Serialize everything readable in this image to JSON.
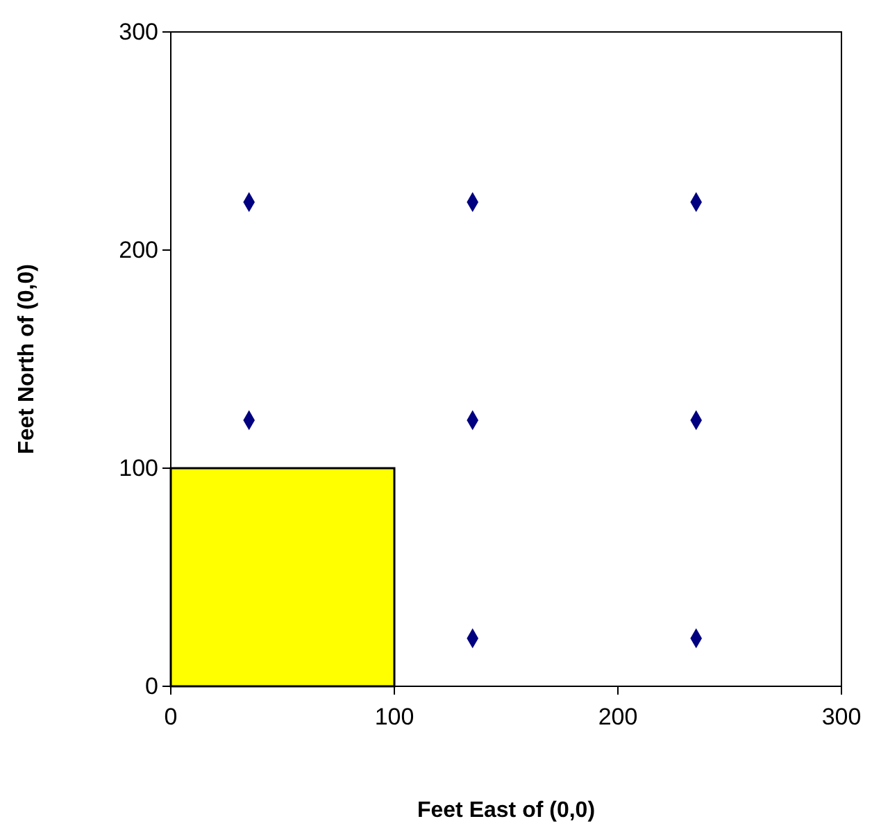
{
  "chart_data": {
    "type": "scatter",
    "xlabel": "Feet East of (0,0)",
    "ylabel": "Feet North of (0,0)",
    "xlim": [
      0,
      300
    ],
    "ylim": [
      0,
      300
    ],
    "xticks": [
      0,
      100,
      200,
      300
    ],
    "yticks": [
      0,
      100,
      200,
      300
    ],
    "grid": false,
    "series": [
      {
        "type": "area",
        "color": "#ffff00",
        "x": [
          0,
          100
        ],
        "values": [
          100,
          100
        ]
      },
      {
        "color": "#000080",
        "marker": "diamond",
        "x": [
          35,
          135,
          235,
          35,
          135,
          235,
          135,
          235
        ],
        "values": [
          222,
          222,
          222,
          122,
          122,
          122,
          22,
          22
        ]
      }
    ]
  }
}
